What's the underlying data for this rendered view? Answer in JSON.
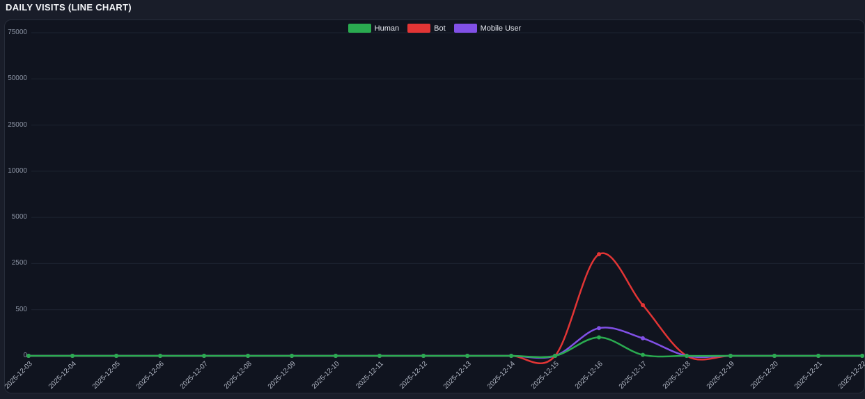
{
  "title": "DAILY VISITS (LINE CHART)",
  "chart_data": {
    "type": "line",
    "title": "DAILY VISITS (LINE CHART)",
    "legend_position": "top-center",
    "grid": "horizontal",
    "x_label_rotation_deg": -45,
    "y_scale": "non-linear: listed ticks are equally spaced",
    "y_ticks": [
      0,
      500,
      2500,
      5000,
      10000,
      25000,
      50000,
      75000
    ],
    "categories": [
      "2025-12-03",
      "2025-12-04",
      "2025-12-05",
      "2025-12-06",
      "2025-12-07",
      "2025-12-08",
      "2025-12-09",
      "2025-12-10",
      "2025-12-11",
      "2025-12-12",
      "2025-12-13",
      "2025-12-14",
      "2025-12-15",
      "2025-12-16",
      "2025-12-17",
      "2025-12-18",
      "2025-12-19",
      "2025-12-20",
      "2025-12-21",
      "2025-12-22"
    ],
    "series": [
      {
        "name": "Human",
        "color": "#2aab50",
        "values": [
          0,
          0,
          0,
          0,
          0,
          0,
          0,
          0,
          0,
          0,
          0,
          0,
          0,
          200,
          10,
          0,
          0,
          0,
          0,
          0
        ]
      },
      {
        "name": "Bot",
        "color": "#e23535",
        "values": [
          0,
          0,
          0,
          0,
          0,
          0,
          0,
          0,
          0,
          0,
          0,
          0,
          0,
          3000,
          700,
          0,
          0,
          0,
          0,
          0
        ]
      },
      {
        "name": "Mobile User",
        "color": "#8150e6",
        "values": [
          0,
          0,
          0,
          0,
          0,
          0,
          0,
          0,
          0,
          0,
          0,
          0,
          0,
          300,
          190,
          0,
          0,
          0,
          0,
          0
        ]
      }
    ],
    "draw_order": [
      "Bot",
      "Mobile User",
      "Human"
    ],
    "point_marker": "circle"
  },
  "colors": {
    "page_bg": "#191d29",
    "panel_bg": "#10141f",
    "panel_border": "#272d3a",
    "grid_line": "#1d2330",
    "y_axis_text": "#8e96a6",
    "x_axis_text": "#b3b9c6",
    "legend_text": "#e6e9f0",
    "title_text": "#f5f7fa",
    "human": "#2aab50",
    "bot": "#e23535",
    "mobile_user": "#8150e6"
  }
}
